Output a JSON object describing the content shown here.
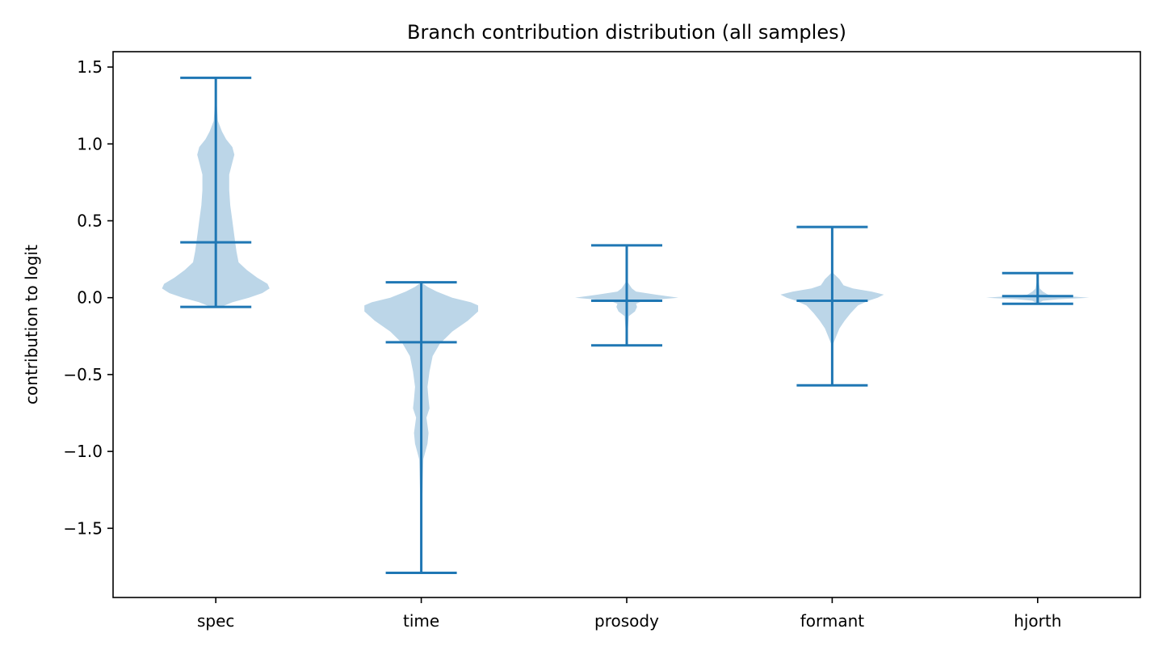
{
  "chart_data": {
    "type": "violin",
    "title": "Branch contribution distribution (all samples)",
    "xlabel": "",
    "ylabel": "contribution to logit",
    "ylim": [
      -1.95,
      1.6
    ],
    "yticks": [
      1.5,
      1.0,
      0.5,
      0.0,
      -0.5,
      -1.0,
      -1.5
    ],
    "ytick_labels": [
      "1.5",
      "1.0",
      "0.5",
      "0.0",
      "−0.5",
      "−1.0",
      "−1.5"
    ],
    "categories": [
      "spec",
      "time",
      "prosody",
      "formant",
      "hjorth"
    ],
    "series": [
      {
        "name": "spec",
        "min": -0.06,
        "max": 1.43,
        "median": 0.36,
        "density": [
          [
            -0.06,
            0.05
          ],
          [
            -0.03,
            0.16
          ],
          [
            0.0,
            0.32
          ],
          [
            0.03,
            0.45
          ],
          [
            0.06,
            0.52
          ],
          [
            0.09,
            0.5
          ],
          [
            0.13,
            0.4
          ],
          [
            0.18,
            0.3
          ],
          [
            0.23,
            0.22
          ],
          [
            0.3,
            0.2
          ],
          [
            0.4,
            0.18
          ],
          [
            0.5,
            0.16
          ],
          [
            0.6,
            0.14
          ],
          [
            0.7,
            0.13
          ],
          [
            0.8,
            0.13
          ],
          [
            0.88,
            0.16
          ],
          [
            0.93,
            0.18
          ],
          [
            0.98,
            0.16
          ],
          [
            1.03,
            0.1
          ],
          [
            1.08,
            0.06
          ],
          [
            1.15,
            0.02
          ],
          [
            1.25,
            0.01
          ],
          [
            1.43,
            0.0
          ]
        ]
      },
      {
        "name": "time",
        "min": -1.79,
        "max": 0.1,
        "median": -0.29,
        "density": [
          [
            -1.79,
            0.0
          ],
          [
            -1.3,
            0.01
          ],
          [
            -1.05,
            0.02
          ],
          [
            -0.95,
            0.06
          ],
          [
            -0.88,
            0.07
          ],
          [
            -0.83,
            0.06
          ],
          [
            -0.78,
            0.05
          ],
          [
            -0.72,
            0.08
          ],
          [
            -0.66,
            0.07
          ],
          [
            -0.58,
            0.06
          ],
          [
            -0.48,
            0.08
          ],
          [
            -0.38,
            0.11
          ],
          [
            -0.3,
            0.18
          ],
          [
            -0.22,
            0.3
          ],
          [
            -0.15,
            0.45
          ],
          [
            -0.09,
            0.55
          ],
          [
            -0.05,
            0.55
          ],
          [
            -0.03,
            0.48
          ],
          [
            0.0,
            0.3
          ],
          [
            0.04,
            0.15
          ],
          [
            0.07,
            0.06
          ],
          [
            0.1,
            0.0
          ]
        ]
      },
      {
        "name": "prosody",
        "min": -0.31,
        "max": 0.34,
        "median": -0.02,
        "density": [
          [
            -0.31,
            0.0
          ],
          [
            -0.12,
            0.02
          ],
          [
            -0.09,
            0.08
          ],
          [
            -0.06,
            0.1
          ],
          [
            -0.04,
            0.09
          ],
          [
            -0.02,
            0.16
          ],
          [
            0.0,
            0.5
          ],
          [
            0.02,
            0.28
          ],
          [
            0.04,
            0.09
          ],
          [
            0.06,
            0.05
          ],
          [
            0.1,
            0.01
          ],
          [
            0.34,
            0.0
          ]
        ]
      },
      {
        "name": "formant",
        "min": -0.57,
        "max": 0.46,
        "median": -0.02,
        "density": [
          [
            -0.57,
            0.0
          ],
          [
            -0.3,
            0.01
          ],
          [
            -0.25,
            0.04
          ],
          [
            -0.2,
            0.07
          ],
          [
            -0.15,
            0.12
          ],
          [
            -0.1,
            0.18
          ],
          [
            -0.05,
            0.25
          ],
          [
            -0.02,
            0.35
          ],
          [
            0.0,
            0.44
          ],
          [
            0.02,
            0.5
          ],
          [
            0.04,
            0.38
          ],
          [
            0.06,
            0.2
          ],
          [
            0.08,
            0.11
          ],
          [
            0.1,
            0.09
          ],
          [
            0.12,
            0.07
          ],
          [
            0.14,
            0.04
          ],
          [
            0.16,
            0.01
          ],
          [
            0.46,
            0.0
          ]
        ]
      },
      {
        "name": "hjorth",
        "min": -0.04,
        "max": 0.16,
        "median": 0.01,
        "density": [
          [
            -0.04,
            0.0
          ],
          [
            -0.02,
            0.05
          ],
          [
            -0.01,
            0.2
          ],
          [
            0.0,
            0.5
          ],
          [
            0.01,
            0.28
          ],
          [
            0.02,
            0.1
          ],
          [
            0.04,
            0.05
          ],
          [
            0.06,
            0.02
          ],
          [
            0.1,
            0.01
          ],
          [
            0.16,
            0.0
          ]
        ]
      }
    ],
    "colors": {
      "body": "#bcd6e8",
      "line": "#1f77b4",
      "axis": "#000000"
    },
    "legend": "none",
    "grid": false
  }
}
